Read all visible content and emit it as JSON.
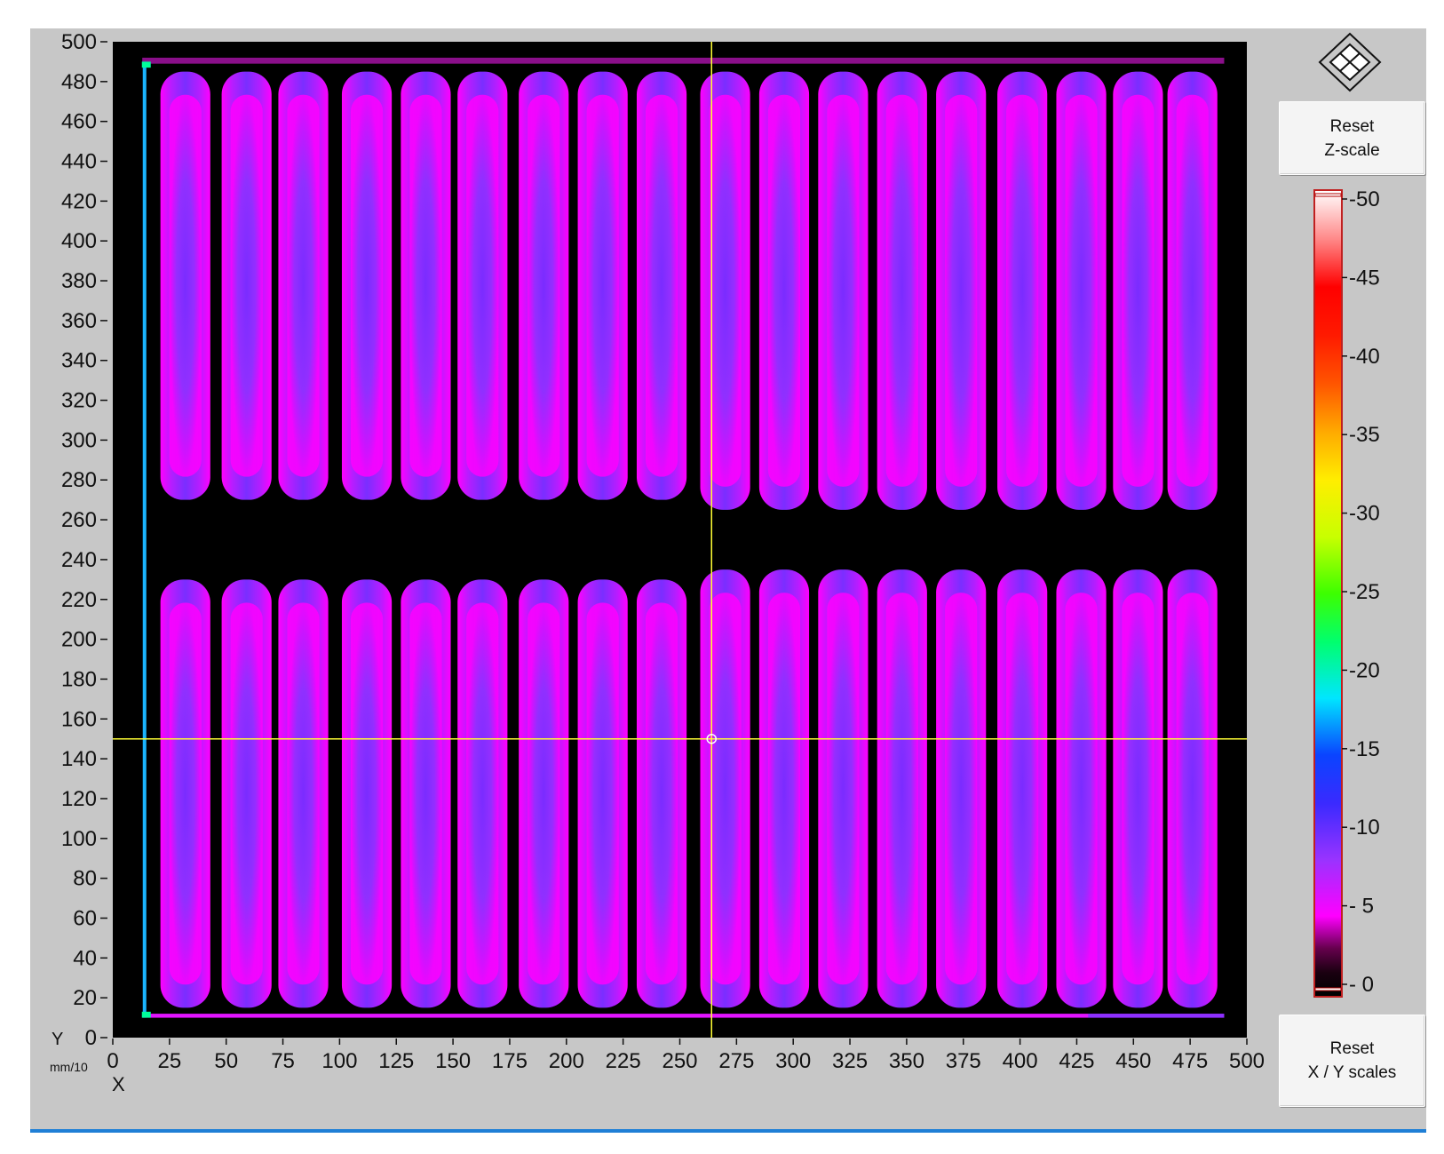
{
  "chart_data": {
    "type": "heatmap",
    "description_units": {
      "x_axis_name": "X",
      "y_axis_name": "Y",
      "unit": "mm/10"
    },
    "xlim": [
      0,
      500
    ],
    "ylim": [
      0,
      500
    ],
    "x_ticks": [
      0,
      25,
      50,
      75,
      100,
      125,
      150,
      175,
      200,
      225,
      250,
      275,
      300,
      325,
      350,
      375,
      400,
      425,
      450,
      475,
      500
    ],
    "y_ticks": [
      0,
      20,
      40,
      60,
      80,
      100,
      120,
      140,
      160,
      180,
      200,
      220,
      240,
      260,
      280,
      300,
      320,
      340,
      360,
      380,
      400,
      420,
      440,
      460,
      480,
      500
    ],
    "colorbar": {
      "ticks": [
        "-50",
        "-45",
        "-40",
        "-35",
        "-30",
        "-25",
        "-20",
        "-15",
        "-10",
        "- 5",
        "- 0"
      ],
      "range": [
        0,
        -50
      ],
      "colormap": [
        "#000000",
        "#ff00ff",
        "#9a32ff",
        "#3a3aff",
        "#1e5cff",
        "#00e6ff",
        "#00ff6e",
        "#aaff00",
        "#ffff00",
        "#ff8c00",
        "#ff2a00",
        "#ff0000",
        "#ffffff"
      ]
    },
    "cursor": {
      "x": 264,
      "y": 150
    },
    "cursor_color": "#ffff33",
    "data_extent": {
      "x": [
        13,
        490
      ],
      "y": [
        10,
        490
      ]
    },
    "cell_columns_x_centers": [
      32,
      59,
      84,
      112,
      138,
      163,
      190,
      216,
      242,
      270,
      296,
      322,
      348,
      374,
      401,
      427,
      452,
      476
    ],
    "cell_column_halfwidth": 11,
    "lower_row": {
      "y_left": [
        15,
        230
      ],
      "y_right": [
        15,
        235
      ]
    },
    "upper_row": {
      "y_left": [
        270,
        485
      ],
      "y_right": [
        265,
        485
      ]
    },
    "gap_band": {
      "left_half": [
        230,
        270
      ],
      "right_half": [
        235,
        260
      ]
    },
    "cell_value_center": -10,
    "cell_value_edge": -4,
    "left_edge_strip": {
      "x": 14,
      "value": -20
    }
  },
  "buttons": {
    "reset_z_line1": "Reset",
    "reset_z_line2": "Z-scale",
    "reset_xy_line1": "Reset",
    "reset_xy_line2": "X / Y scales"
  },
  "axes": {
    "x_name": "X",
    "y_name": "Y",
    "unit": "mm/10"
  },
  "icons": {
    "navigation": "pan-zoom-diamond-icon"
  }
}
